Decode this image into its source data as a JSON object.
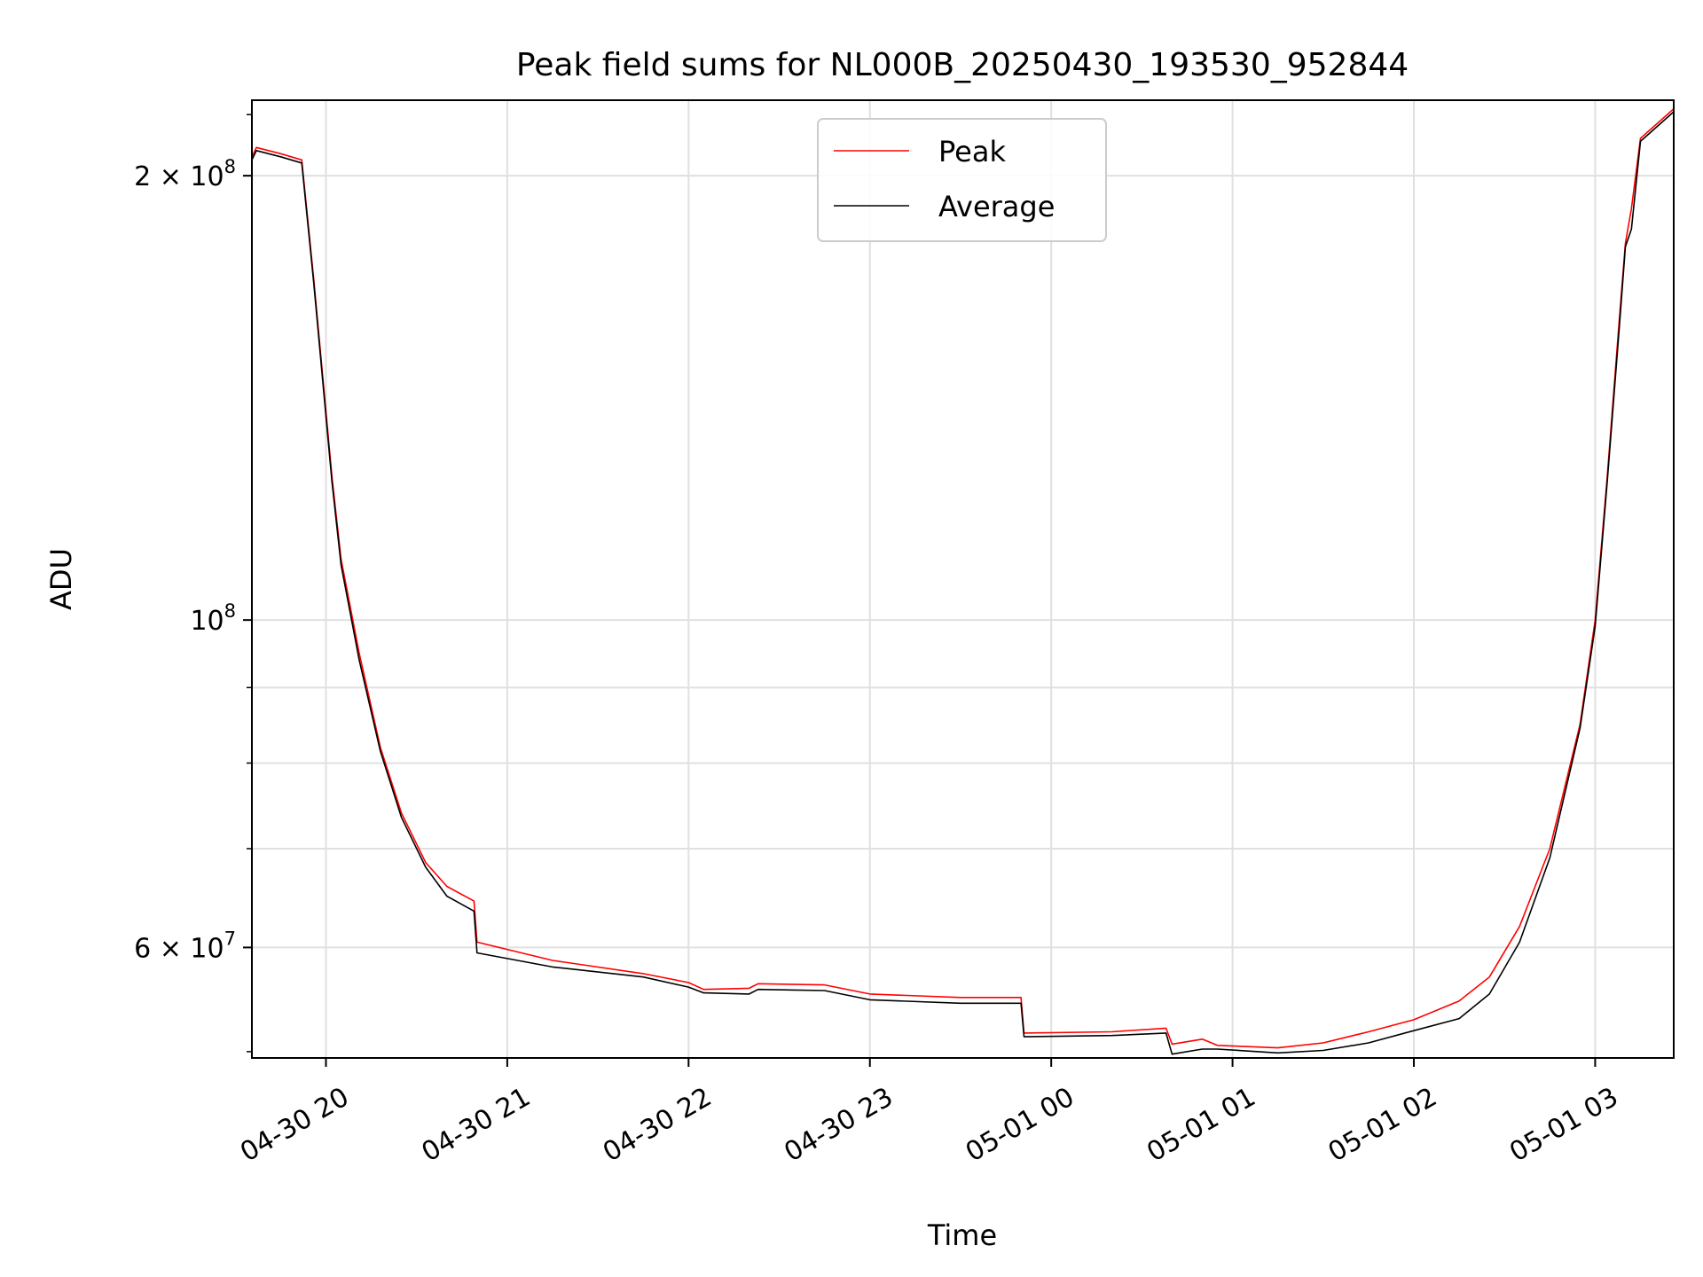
{
  "chart_data": {
    "type": "line",
    "title": "Peak field sums for NL000B_20250430_193530_952844",
    "xlabel": "Time",
    "ylabel": "ADU",
    "yscale": "log",
    "xlim": [
      "2025-04-30 19:35:30",
      "2025-05-01 03:26:00"
    ],
    "ylim": [
      50500000,
      225000000
    ],
    "grid": true,
    "legend_position": "top-center",
    "x_ticks": [
      "04-30 20",
      "04-30 21",
      "04-30 22",
      "04-30 23",
      "05-01 00",
      "05-01 01",
      "05-01 02",
      "05-01 03"
    ],
    "y_ticks": [
      "2 × 10^8",
      "10^8",
      "6 × 10^7"
    ],
    "series": [
      {
        "name": "Peak",
        "color": "#ff0000",
        "x": [
          "2025-04-30 19:35:30",
          "2025-04-30 19:37:00",
          "2025-04-30 19:45:00",
          "2025-04-30 19:52:00",
          "2025-04-30 19:56:00",
          "2025-04-30 20:02:00",
          "2025-04-30 20:05:00",
          "2025-04-30 20:11:00",
          "2025-04-30 20:18:00",
          "2025-04-30 20:25:00",
          "2025-04-30 20:33:00",
          "2025-04-30 20:40:00",
          "2025-04-30 20:49:00",
          "2025-04-30 20:50:00",
          "2025-04-30 21:15:00",
          "2025-04-30 21:45:00",
          "2025-04-30 22:00:00",
          "2025-04-30 22:05:00",
          "2025-04-30 22:20:00",
          "2025-04-30 22:23:00",
          "2025-04-30 22:45:00",
          "2025-04-30 23:00:00",
          "2025-04-30 23:30:00",
          "2025-04-30 23:50:00",
          "2025-04-30 23:51:00",
          "2025-05-01 00:20:00",
          "2025-05-01 00:38:00",
          "2025-05-01 00:40:00",
          "2025-05-01 00:50:00",
          "2025-05-01 00:55:00",
          "2025-05-01 01:15:00",
          "2025-05-01 01:30:00",
          "2025-05-01 01:45:00",
          "2025-05-01 02:00:00",
          "2025-05-01 02:15:00",
          "2025-05-01 02:25:00",
          "2025-05-01 02:35:00",
          "2025-05-01 02:45:00",
          "2025-05-01 02:55:00",
          "2025-05-01 03:00:00",
          "2025-05-01 03:04:00",
          "2025-05-01 03:08:00",
          "2025-05-01 03:10:00",
          "2025-05-01 03:12:00",
          "2025-05-01 03:15:00",
          "2025-05-01 03:26:00"
        ],
        "y": [
          206000000,
          209000000,
          207000000,
          205000000,
          170000000,
          125000000,
          110000000,
          95000000,
          82000000,
          74000000,
          68500000,
          66000000,
          64500000,
          60500000,
          58800000,
          57600000,
          56800000,
          56200000,
          56300000,
          56700000,
          56600000,
          55800000,
          55500000,
          55500000,
          52500000,
          52600000,
          52900000,
          51600000,
          52000000,
          51500000,
          51300000,
          51700000,
          52600000,
          53600000,
          55200000,
          57300000,
          62000000,
          70000000,
          85000000,
          100000000,
          125000000,
          160000000,
          180000000,
          190000000,
          212000000,
          222000000
        ]
      },
      {
        "name": "Average",
        "color": "#000000",
        "x": [
          "2025-04-30 19:35:30",
          "2025-04-30 19:37:00",
          "2025-04-30 19:45:00",
          "2025-04-30 19:52:00",
          "2025-04-30 19:56:00",
          "2025-04-30 20:02:00",
          "2025-04-30 20:05:00",
          "2025-04-30 20:11:00",
          "2025-04-30 20:18:00",
          "2025-04-30 20:25:00",
          "2025-04-30 20:33:00",
          "2025-04-30 20:40:00",
          "2025-04-30 20:49:00",
          "2025-04-30 20:50:00",
          "2025-04-30 21:15:00",
          "2025-04-30 21:45:00",
          "2025-04-30 22:00:00",
          "2025-04-30 22:05:00",
          "2025-04-30 22:20:00",
          "2025-04-30 22:23:00",
          "2025-04-30 22:45:00",
          "2025-04-30 23:00:00",
          "2025-04-30 23:30:00",
          "2025-04-30 23:50:00",
          "2025-04-30 23:51:00",
          "2025-05-01 00:20:00",
          "2025-05-01 00:38:00",
          "2025-05-01 00:40:00",
          "2025-05-01 00:50:00",
          "2025-05-01 00:55:00",
          "2025-05-01 01:15:00",
          "2025-05-01 01:30:00",
          "2025-05-01 01:45:00",
          "2025-05-01 02:00:00",
          "2025-05-01 02:15:00",
          "2025-05-01 02:25:00",
          "2025-05-01 02:35:00",
          "2025-05-01 02:45:00",
          "2025-05-01 02:55:00",
          "2025-05-01 03:00:00",
          "2025-05-01 03:04:00",
          "2025-05-01 03:08:00",
          "2025-05-01 03:10:00",
          "2025-05-01 03:12:00",
          "2025-05-01 03:15:00",
          "2025-05-01 03:26:00"
        ],
        "y": [
          205000000,
          208000000,
          206000000,
          204000000,
          169000000,
          124000000,
          109000000,
          94000000,
          81500000,
          73500000,
          68000000,
          65000000,
          63500000,
          59500000,
          58200000,
          57300000,
          56400000,
          55900000,
          55800000,
          56200000,
          56100000,
          55300000,
          55000000,
          55000000,
          52200000,
          52300000,
          52500000,
          50800000,
          51200000,
          51200000,
          50900000,
          51100000,
          51700000,
          52700000,
          53700000,
          55800000,
          60500000,
          69000000,
          84500000,
          99000000,
          124000000,
          158000000,
          179000000,
          184000000,
          211000000,
          221000000
        ]
      }
    ]
  }
}
